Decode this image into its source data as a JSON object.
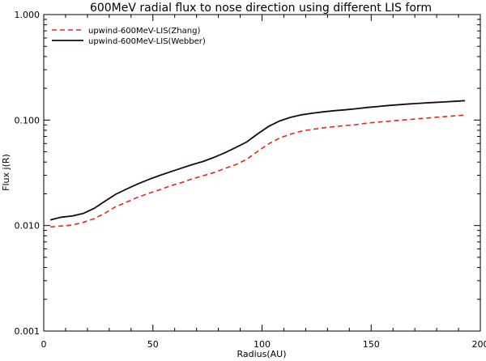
{
  "chart_data": {
    "type": "line",
    "title": "600MeV radial flux to nose direction using different LIS form",
    "xlabel": "Radius(AU)",
    "ylabel": "Flux j(R)",
    "xlim": [
      0,
      200
    ],
    "ylim": [
      0.001,
      1.0
    ],
    "yscale": "log",
    "xticks": [
      0,
      50,
      100,
      150,
      200
    ],
    "xtick_labels": [
      "0",
      "50",
      "100",
      "150",
      "200"
    ],
    "yticks": [
      0.001,
      0.01,
      0.1,
      1.0
    ],
    "ytick_labels": [
      "0.001",
      "0.010",
      "0.100",
      "1.000"
    ],
    "grid": false,
    "legend_position": "top-left",
    "series": [
      {
        "name": "upwind-600MeV-LIS(Zhang)",
        "color": "#e8281c",
        "style": "dashed",
        "x": [
          3,
          8,
          13,
          18,
          23,
          28,
          33,
          38,
          43,
          48,
          53,
          58,
          63,
          68,
          73,
          78,
          83,
          88,
          93,
          98,
          103,
          108,
          113,
          118,
          123,
          128,
          133,
          138,
          143,
          148,
          153,
          158,
          163,
          168,
          173,
          178,
          183,
          188,
          193
        ],
        "values": [
          0.0097,
          0.0099,
          0.0101,
          0.0107,
          0.0116,
          0.0131,
          0.0151,
          0.0167,
          0.0185,
          0.0202,
          0.0218,
          0.0238,
          0.0255,
          0.0277,
          0.0297,
          0.0318,
          0.0348,
          0.0378,
          0.0425,
          0.0505,
          0.0595,
          0.0675,
          0.0735,
          0.0785,
          0.0815,
          0.0845,
          0.0865,
          0.0885,
          0.0905,
          0.0935,
          0.0955,
          0.0975,
          0.0995,
          0.1015,
          0.1035,
          0.1055,
          0.1075,
          0.1095,
          0.1115
        ]
      },
      {
        "name": "upwind-600MeV-LIS(Webber)",
        "color": "#1a0614",
        "style": "solid",
        "x": [
          3,
          8,
          13,
          18,
          23,
          28,
          33,
          38,
          43,
          48,
          53,
          58,
          63,
          68,
          73,
          78,
          83,
          88,
          93,
          98,
          103,
          108,
          113,
          118,
          123,
          128,
          133,
          138,
          143,
          148,
          153,
          158,
          163,
          168,
          173,
          178,
          183,
          188,
          193
        ],
        "values": [
          0.0113,
          0.012,
          0.0123,
          0.013,
          0.0145,
          0.017,
          0.0198,
          0.0222,
          0.0248,
          0.0273,
          0.0298,
          0.0323,
          0.035,
          0.0378,
          0.0405,
          0.0443,
          0.049,
          0.055,
          0.062,
          0.074,
          0.087,
          0.098,
          0.106,
          0.112,
          0.116,
          0.1195,
          0.1225,
          0.125,
          0.128,
          0.1315,
          0.1345,
          0.1375,
          0.14,
          0.1425,
          0.1445,
          0.1465,
          0.1485,
          0.1505,
          0.1525
        ]
      }
    ]
  }
}
